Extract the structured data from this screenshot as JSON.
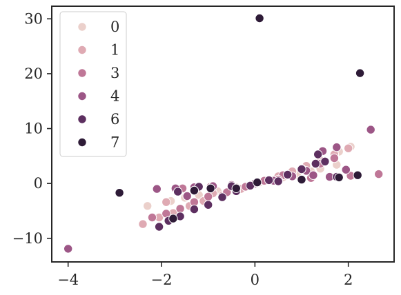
{
  "chart_data": {
    "type": "scatter",
    "title": "",
    "xlabel": "",
    "ylabel": "",
    "xlim": [
      -4.35,
      2.98
    ],
    "ylim": [
      -14.3,
      32.3
    ],
    "xticks": [
      -4,
      -2,
      0,
      2
    ],
    "yticks": [
      -10,
      0,
      10,
      20,
      30
    ],
    "xtick_labels": [
      "−4",
      "−2",
      "0",
      "2"
    ],
    "ytick_labels": [
      "−10",
      "0",
      "10",
      "20",
      "30"
    ],
    "grid": false,
    "legend_position": "top-left",
    "series": [
      {
        "name": "0",
        "color": "#ebd0cb",
        "points": [
          [
            -2.3,
            -4.1
          ],
          [
            -1.8,
            -3.2
          ],
          [
            -1.2,
            -2.1
          ],
          [
            -0.8,
            -1.4
          ],
          [
            -0.4,
            -0.7
          ],
          [
            0.0,
            -0.1
          ],
          [
            0.3,
            0.5
          ],
          [
            0.6,
            1.1
          ],
          [
            0.9,
            1.6
          ],
          [
            1.2,
            2.2
          ],
          [
            1.4,
            2.7
          ],
          [
            1.75,
            3.4
          ],
          [
            2.05,
            6.7
          ],
          [
            1.8,
            5.8
          ],
          [
            -1.5,
            -2.6
          ],
          [
            0.1,
            0.2
          ]
        ]
      },
      {
        "name": "1",
        "color": "#dfaab3",
        "points": [
          [
            -2.4,
            -7.4
          ],
          [
            -2.05,
            -6.2
          ],
          [
            -1.75,
            -5.4
          ],
          [
            -1.4,
            -4.1
          ],
          [
            -1.1,
            -3.2
          ],
          [
            -0.7,
            -2.2
          ],
          [
            -0.3,
            -1.0
          ],
          [
            0.2,
            0.4
          ],
          [
            0.5,
            1.3
          ],
          [
            0.8,
            2.2
          ],
          [
            1.1,
            3.2
          ],
          [
            1.4,
            4.2
          ],
          [
            1.7,
            5.3
          ],
          [
            2.0,
            6.4
          ],
          [
            -1.9,
            -3.4
          ],
          [
            -0.9,
            -1.8
          ]
        ]
      },
      {
        "name": "3",
        "color": "#bf7797",
        "points": [
          [
            -2.2,
            -6.2
          ],
          [
            -1.9,
            -5.5
          ],
          [
            -1.6,
            -4.6
          ],
          [
            -1.3,
            -3.4
          ],
          [
            -1.0,
            -2.4
          ],
          [
            -0.6,
            -1.6
          ],
          [
            -0.2,
            -0.6
          ],
          [
            0.2,
            0.5
          ],
          [
            0.6,
            1.5
          ],
          [
            1.0,
            2.7
          ],
          [
            1.4,
            3.6
          ],
          [
            1.7,
            4.6
          ],
          [
            2.05,
            1.4
          ],
          [
            2.65,
            1.7
          ],
          [
            -1.55,
            -0.9
          ],
          [
            -0.95,
            -0.6
          ],
          [
            0.5,
            0.7
          ],
          [
            1.2,
            1.0
          ]
        ]
      },
      {
        "name": "4",
        "color": "#9c5686",
        "points": [
          [
            -2.1,
            -1.0
          ],
          [
            -1.7,
            -0.9
          ],
          [
            -1.3,
            -0.7
          ],
          [
            -0.9,
            -0.5
          ],
          [
            -0.5,
            -0.3
          ],
          [
            0.0,
            0.0
          ],
          [
            0.4,
            0.5
          ],
          [
            0.8,
            1.3
          ],
          [
            1.1,
            2.3
          ],
          [
            1.45,
            5.9
          ],
          [
            1.75,
            6.6
          ],
          [
            1.95,
            2.5
          ],
          [
            2.2,
            1.5
          ],
          [
            2.48,
            9.8
          ],
          [
            1.6,
            1.2
          ],
          [
            1.25,
            1.5
          ],
          [
            -4.0,
            -11.9
          ],
          [
            -1.45,
            -2.3
          ]
        ]
      },
      {
        "name": "6",
        "color": "#5d2f60",
        "points": [
          [
            -2.05,
            -7.9
          ],
          [
            -1.85,
            -6.8
          ],
          [
            -1.6,
            -6.0
          ],
          [
            -1.3,
            -4.7
          ],
          [
            -1.0,
            -3.9
          ],
          [
            -0.7,
            -2.5
          ],
          [
            -0.4,
            -1.4
          ],
          [
            -0.1,
            -0.4
          ],
          [
            0.3,
            0.6
          ],
          [
            0.7,
            1.6
          ],
          [
            1.0,
            2.6
          ],
          [
            1.3,
            3.6
          ],
          [
            1.5,
            4.0
          ],
          [
            1.75,
            1.2
          ],
          [
            -1.65,
            -1.5
          ],
          [
            -1.2,
            -0.6
          ],
          [
            -0.5,
            -0.5
          ],
          [
            0.5,
            0.4
          ],
          [
            1.35,
            5.3
          ]
        ]
      },
      {
        "name": "7",
        "color": "#2e1b37",
        "points": [
          [
            0.1,
            30.1
          ],
          [
            2.25,
            20.1
          ],
          [
            -2.9,
            -1.7
          ],
          [
            -1.3,
            -1.3
          ],
          [
            -0.95,
            -0.9
          ],
          [
            0.05,
            0.2
          ],
          [
            1.0,
            0.7
          ],
          [
            1.8,
            1.1
          ],
          [
            2.2,
            1.5
          ],
          [
            -1.75,
            -6.4
          ],
          [
            -0.4,
            -0.9
          ]
        ]
      }
    ]
  }
}
